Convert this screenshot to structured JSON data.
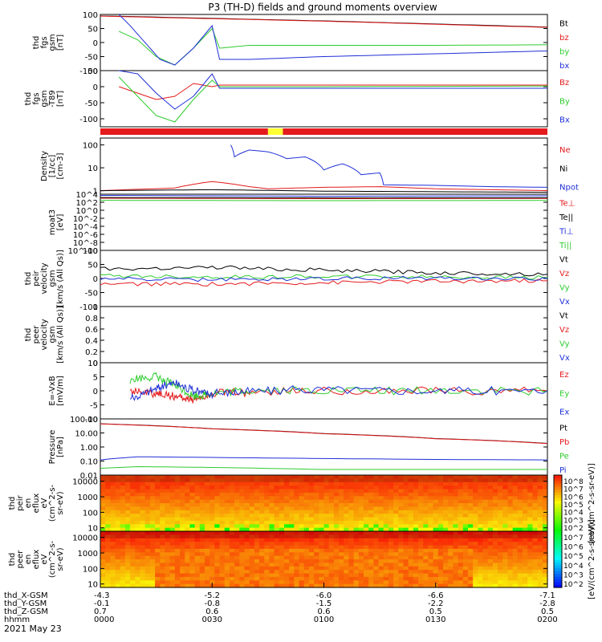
{
  "title": "P3 (TH-D) fields and ground moments overview",
  "date_label": "2021 May 23",
  "colors": {
    "black": "#000000",
    "red": "#e41a1c",
    "green": "#2ecc2e",
    "blue": "#1f2fd6",
    "status_red": "#e41a1c",
    "status_yellow": "#ffff33"
  },
  "chart_data": [
    {
      "type": "line",
      "ylabel": [
        "thd",
        "fgs",
        "gsm",
        "[nT]"
      ],
      "ylim": [
        -100,
        100
      ],
      "yticks": [
        100,
        50,
        0,
        -50,
        -100
      ],
      "series": [
        {
          "name": "Bt",
          "color": "black",
          "x": [
            0,
            30,
            60,
            90,
            120
          ],
          "y": [
            95,
            86,
            77,
            66,
            55
          ]
        },
        {
          "name": "bz",
          "color": "red",
          "x": [
            0,
            30,
            60,
            90,
            120
          ],
          "y": [
            94,
            85,
            76,
            65,
            54
          ]
        },
        {
          "name": "by",
          "color": "green",
          "x": [
            5,
            10,
            15,
            20,
            25,
            30,
            32,
            40,
            60,
            90,
            120
          ],
          "y": [
            40,
            10,
            -50,
            -80,
            -20,
            50,
            -20,
            -10,
            -10,
            -10,
            -8
          ]
        },
        {
          "name": "bx",
          "color": "blue",
          "x": [
            5,
            8,
            12,
            16,
            20,
            25,
            30,
            32,
            40,
            60,
            90,
            120
          ],
          "y": [
            100,
            60,
            0,
            -60,
            -80,
            -20,
            60,
            -60,
            -60,
            -50,
            -40,
            -30
          ]
        }
      ]
    },
    {
      "type": "line",
      "ylabel": [
        "thd",
        "fgs",
        "gsm",
        "-T89",
        "[nT]"
      ],
      "ylim": [
        -125,
        50
      ],
      "yticks": [
        50,
        0,
        -50,
        -100
      ],
      "series": [
        {
          "name": "Bz",
          "color": "red",
          "x": [
            5,
            10,
            15,
            20,
            25,
            30,
            32,
            60,
            120
          ],
          "y": [
            0,
            -20,
            -40,
            -30,
            10,
            0,
            5,
            5,
            5
          ]
        },
        {
          "name": "By",
          "color": "green",
          "x": [
            5,
            10,
            15,
            20,
            25,
            30,
            32,
            60,
            120
          ],
          "y": [
            30,
            -30,
            -90,
            -110,
            -40,
            20,
            0,
            0,
            2
          ]
        },
        {
          "name": "Bx",
          "color": "blue",
          "x": [
            5,
            10,
            15,
            20,
            25,
            30,
            32,
            60,
            120
          ],
          "y": [
            50,
            40,
            -20,
            -70,
            -30,
            40,
            -5,
            -5,
            -5
          ]
        }
      ]
    },
    {
      "type": "line",
      "ylabel": [
        "Density",
        "[1/cc]",
        "[cm-3]"
      ],
      "yscale": "log",
      "ylim": [
        0.7,
        200
      ],
      "yticks": [
        100,
        10,
        1
      ],
      "series": [
        {
          "name": "Ne",
          "color": "red",
          "x": [
            0,
            20,
            30,
            40,
            45,
            60,
            75,
            90,
            105,
            120
          ],
          "y": [
            1,
            1.3,
            2.5,
            1.5,
            1.2,
            1.4,
            1.5,
            1.2,
            1.1,
            1.0
          ]
        },
        {
          "name": "Ni",
          "color": "black",
          "x": [
            0,
            30,
            60,
            90,
            120
          ],
          "y": [
            1.0,
            1.1,
            0.95,
            0.9,
            0.85
          ]
        },
        {
          "name": "Npot",
          "color": "blue",
          "x": [
            35,
            36,
            40,
            45,
            50,
            55,
            60,
            65,
            70,
            75,
            76,
            90,
            105,
            120
          ],
          "y": [
            100,
            30,
            60,
            50,
            25,
            30,
            8,
            15,
            5,
            6,
            1.8,
            1.7,
            1.5,
            1.4
          ]
        }
      ]
    },
    {
      "type": "line",
      "ylabel": [
        "moat3",
        "[eV]"
      ],
      "yscale": "log",
      "ylim": [
        1e-10,
        10000
      ],
      "yticks": [
        10000,
        100,
        1,
        0.01,
        0.0001,
        1e-06,
        1e-08,
        1e-10
      ],
      "ytick_labels": [
        "10^4",
        "10^2",
        "10^0",
        "10^-2",
        "10^-4",
        "10^-6",
        "10^-8",
        "10^-10"
      ],
      "series": [
        {
          "name": "Te⊥",
          "color": "red",
          "x": [
            0,
            60,
            120
          ],
          "y": [
            1000,
            800,
            900
          ]
        },
        {
          "name": "Te||",
          "color": "black",
          "x": [
            0,
            60,
            120
          ],
          "y": [
            1500,
            1200,
            1300
          ]
        },
        {
          "name": "Ti⊥",
          "color": "blue",
          "x": [
            0,
            60,
            120
          ],
          "y": [
            5000,
            3000,
            4000
          ]
        },
        {
          "name": "Ti||",
          "color": "green",
          "x": [
            0,
            60,
            120
          ],
          "y": [
            300,
            250,
            280
          ]
        }
      ]
    },
    {
      "type": "line",
      "ylabel": [
        "thd",
        "peir",
        "velocity",
        "gsm",
        "[km/s (All Qs)]"
      ],
      "ylim": [
        -100,
        100
      ],
      "yticks": [
        100,
        50,
        0,
        -50,
        -100
      ],
      "series": [
        {
          "name": "Vt",
          "color": "black",
          "x": [
            0,
            30,
            60,
            90,
            120
          ],
          "y": [
            35,
            40,
            30,
            20,
            15
          ]
        },
        {
          "name": "Vz",
          "color": "red",
          "x": [
            0,
            30,
            60,
            90,
            120
          ],
          "y": [
            -20,
            -20,
            -15,
            -10,
            -8
          ]
        },
        {
          "name": "Vy",
          "color": "green",
          "x": [
            0,
            30,
            60,
            90,
            120
          ],
          "y": [
            10,
            5,
            8,
            5,
            3
          ]
        },
        {
          "name": "Vx",
          "color": "blue",
          "x": [
            0,
            30,
            60,
            90,
            120
          ],
          "y": [
            0,
            -5,
            0,
            2,
            0
          ]
        }
      ]
    },
    {
      "type": "line",
      "ylabel": [
        "thd",
        "peer",
        "velocity",
        "gsm",
        "[km/s (All Qs)]"
      ],
      "ylim": [
        0,
        1
      ],
      "yticks": [
        1.0,
        0.8,
        0.6,
        0.4,
        0.2,
        0.0
      ],
      "series": [
        {
          "name": "Vt",
          "color": "black"
        },
        {
          "name": "Vz",
          "color": "red"
        },
        {
          "name": "Vy",
          "color": "green"
        },
        {
          "name": "Vx",
          "color": "blue"
        }
      ]
    },
    {
      "type": "line",
      "ylabel": [
        "E=-VxB",
        "[mV/m]"
      ],
      "ylim": [
        -10,
        10
      ],
      "yticks": [
        10,
        5,
        0,
        -5,
        -10
      ],
      "series": [
        {
          "name": "Ez",
          "color": "red",
          "x": [
            8,
            15,
            20,
            25,
            30,
            40,
            60,
            90,
            120
          ],
          "y": [
            0,
            -1,
            -2,
            -3,
            -1,
            -0.5,
            0,
            0,
            0
          ]
        },
        {
          "name": "Ey",
          "color": "green",
          "x": [
            8,
            15,
            20,
            25,
            30,
            40,
            60,
            90,
            120
          ],
          "y": [
            4,
            5,
            2,
            -2,
            -1,
            0,
            0,
            0,
            0
          ]
        },
        {
          "name": "Ex",
          "color": "blue",
          "x": [
            8,
            15,
            20,
            25,
            30,
            40,
            60,
            90,
            120
          ],
          "y": [
            -3,
            1,
            3,
            0,
            -1,
            0,
            0.5,
            0,
            0
          ]
        }
      ]
    },
    {
      "type": "line",
      "ylabel": [
        "Pressure",
        "[nPa]"
      ],
      "yscale": "log",
      "ylim": [
        0.01,
        100
      ],
      "yticks": [
        100,
        10,
        1,
        0.1,
        0.01
      ],
      "ytick_labels": [
        "100.00",
        "10.00",
        "1.00",
        "0.10",
        "0.01"
      ],
      "series": [
        {
          "name": "Pt",
          "color": "black",
          "x": [
            0,
            30,
            60,
            90,
            120
          ],
          "y": [
            45,
            20,
            9,
            4,
            1.8
          ]
        },
        {
          "name": "Pb",
          "color": "red",
          "x": [
            0,
            30,
            60,
            90,
            120
          ],
          "y": [
            44,
            19.5,
            8.8,
            3.9,
            1.75
          ]
        },
        {
          "name": "Pe",
          "color": "green",
          "x": [
            0,
            10,
            30,
            60,
            90,
            120
          ],
          "y": [
            0.03,
            0.04,
            0.035,
            0.025,
            0.025,
            0.025
          ]
        },
        {
          "name": "Pi",
          "color": "blue",
          "x": [
            0,
            10,
            30,
            60,
            90,
            120
          ],
          "y": [
            0.12,
            0.2,
            0.18,
            0.15,
            0.13,
            0.12
          ]
        }
      ]
    },
    {
      "type": "heatmap",
      "ylabel": [
        "thd",
        "peir",
        "en",
        "eflux",
        "eV",
        "(cm^2-s-",
        "sr-eV)"
      ],
      "yscale": "log",
      "ylim": [
        6,
        25000
      ],
      "yticks": [
        10000,
        1000,
        100,
        10
      ],
      "ytick_labels": [
        "10000",
        "1000",
        "100",
        "10"
      ]
    },
    {
      "type": "heatmap",
      "ylabel": [
        "thd",
        "peer",
        "en",
        "eflux",
        "eV",
        "(cm^2-s-",
        "sr-eV)"
      ],
      "yscale": "log",
      "ylim": [
        6,
        25000
      ],
      "yticks": [
        10000,
        1000,
        100,
        10
      ],
      "ytick_labels": [
        "10000",
        "1000",
        "100",
        "10"
      ],
      "colorbar": {
        "label": "[eV/(cm^2-s-sr-eV)]",
        "label_top": "[eV/(cm^2-s-sr-eV)]",
        "ticks_top": [
          "10^8",
          "10^7",
          "10^6",
          "10^5",
          "10^4",
          "10^3",
          "10^2"
        ],
        "ticks_bottom": [
          "10^7",
          "10^6",
          "10^5",
          "10^4",
          "10^3",
          "10^2"
        ]
      }
    }
  ],
  "status_bar": [
    {
      "from": 0,
      "to": 45,
      "color": "status_red"
    },
    {
      "from": 45,
      "to": 49,
      "color": "status_yellow"
    },
    {
      "from": 49,
      "to": 120,
      "color": "status_red"
    }
  ],
  "x_axis": {
    "xlim": [
      0,
      120
    ],
    "tick_minutes": [
      0,
      30,
      60,
      90,
      120
    ],
    "rows": [
      {
        "label": "thd_X-GSM",
        "values": [
          "-4.3",
          "-5.2",
          "-6.0",
          "-6.6",
          "-7.1"
        ]
      },
      {
        "label": "thd_Y-GSM",
        "values": [
          "-0.1",
          "-0.8",
          "-1.5",
          "-2.2",
          "-2.8"
        ]
      },
      {
        "label": "thd_Z-GSM",
        "values": [
          "0.7",
          "0.6",
          "0.6",
          "0.5",
          "0.5"
        ]
      },
      {
        "label": "hhmm",
        "values": [
          "0000",
          "0030",
          "0100",
          "0130",
          "0200"
        ]
      }
    ]
  }
}
